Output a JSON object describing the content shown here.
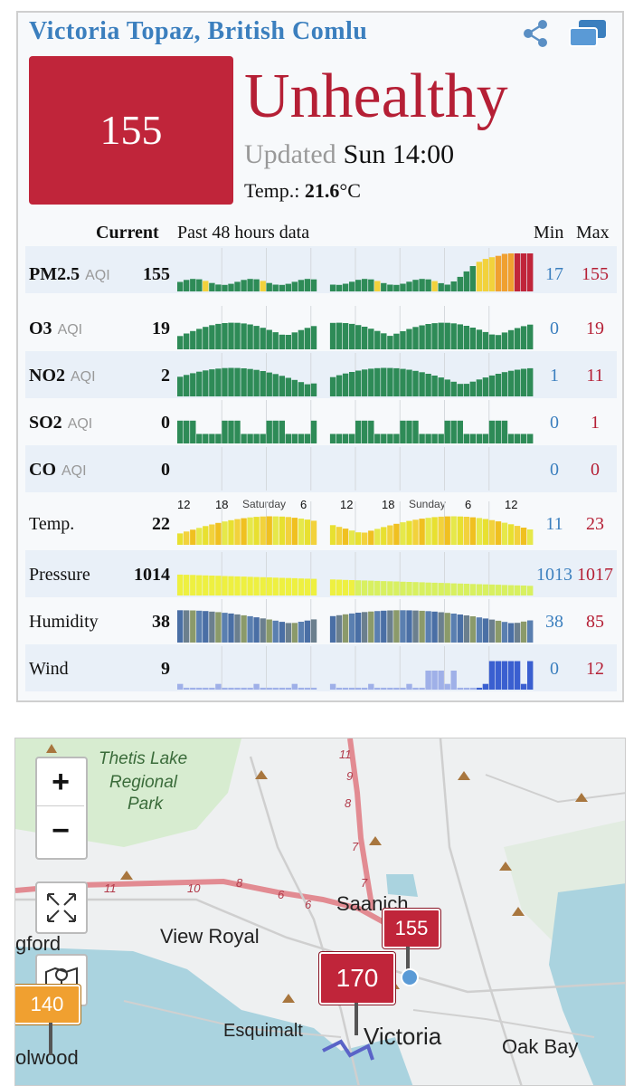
{
  "station": {
    "title": "Victoria Topaz, British Comlu",
    "aqi": "155",
    "status": "Unhealthy",
    "updated_label": "Updated",
    "updated_time": "Sun 14:00",
    "temp_label": "Temp.:",
    "temp_value": "21.6",
    "temp_unit": "°C"
  },
  "table": {
    "current_label": "Current",
    "history_label": "Past 48 hours data",
    "min_label": "Min",
    "max_label": "Max",
    "axis_hours": [
      "12",
      "18",
      "6",
      "12",
      "18",
      "6",
      "12"
    ],
    "axis_days": [
      "Saturday",
      "Sunday"
    ],
    "rows": [
      {
        "name": "PM2.5",
        "unit": "AQI",
        "current": "155",
        "min": "17",
        "max": "155"
      },
      {
        "name": "O3",
        "unit": "AQI",
        "current": "19",
        "min": "0",
        "max": "19"
      },
      {
        "name": "NO2",
        "unit": "AQI",
        "current": "2",
        "min": "1",
        "max": "11"
      },
      {
        "name": "SO2",
        "unit": "AQI",
        "current": "0",
        "min": "0",
        "max": "1"
      },
      {
        "name": "CO",
        "unit": "AQI",
        "current": "0",
        "min": "0",
        "max": "0"
      },
      {
        "name": "Temp.",
        "unit": "",
        "current": "22",
        "min": "11",
        "max": "23"
      },
      {
        "name": "Pressure",
        "unit": "",
        "current": "1014",
        "min": "1013",
        "max": "1017"
      },
      {
        "name": "Humidity",
        "unit": "",
        "current": "38",
        "min": "38",
        "max": "85"
      },
      {
        "name": "Wind",
        "unit": "",
        "current": "9",
        "min": "0",
        "max": "12"
      }
    ]
  },
  "map": {
    "zoom_in": "+",
    "zoom_out": "−",
    "markers": [
      "155",
      "170",
      "140"
    ],
    "places": [
      "Thetis Lake",
      "Regional",
      "Park",
      "View Royal",
      "Saanich",
      "Esquimalt",
      "Victoria",
      "Oak Bay",
      "gford",
      "olwood"
    ],
    "road_numbers": [
      "11",
      "9",
      "8",
      "7",
      "7",
      "11",
      "10",
      "8",
      "6",
      "6"
    ]
  },
  "colors": {
    "unhealthy": "#c0253a",
    "good": "#2e8b57",
    "moderate": "#f2d23c",
    "sensitive": "#f0a030",
    "min_blue": "#3b7fbe",
    "max_red": "#b51f35"
  },
  "icons": [
    "share-icon",
    "windows-icon",
    "fullscreen-icon",
    "map-icon"
  ]
}
